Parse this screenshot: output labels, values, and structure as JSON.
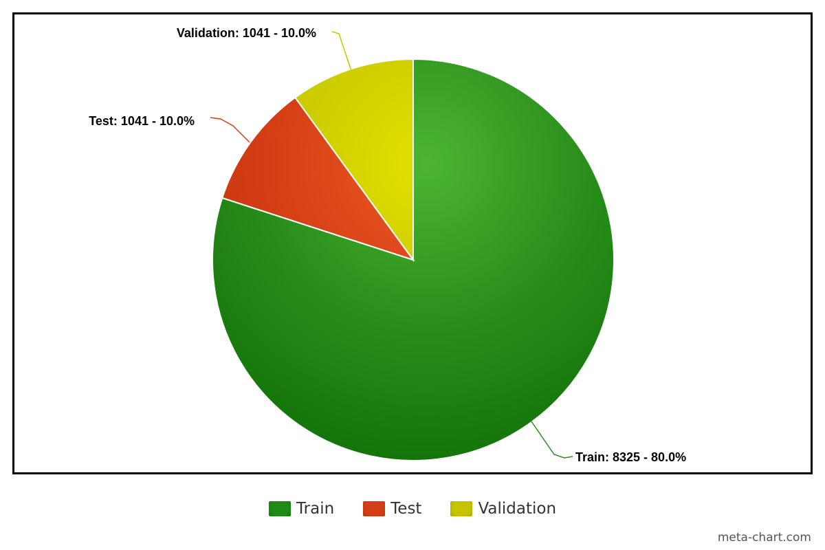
{
  "chart_data": {
    "type": "pie",
    "title": "",
    "start_angle_deg": 0,
    "direction": "clockwise",
    "slices": [
      {
        "name": "Train",
        "value": 8325,
        "percent": 80.0,
        "label": "Train: 8325 - 80.0%",
        "color": "#2a8f1c",
        "color_light": "#4db532",
        "color_dark": "#0b6a02"
      },
      {
        "name": "Test",
        "value": 1041,
        "percent": 10.0,
        "label": "Test: 1041 - 10.0%",
        "color": "#d43e14",
        "color_light": "#ec5a22",
        "color_dark": "#b52a0c"
      },
      {
        "name": "Validation",
        "value": 1041,
        "percent": 10.0,
        "label": "Validation: 1041 - 10.0%",
        "color": "#c8c800",
        "color_light": "#e2e000",
        "color_dark": "#b0b000"
      }
    ],
    "legend_position": "bottom-center"
  },
  "legend": {
    "items": [
      {
        "label": "Train",
        "color": "#1f8a14"
      },
      {
        "label": "Test",
        "color": "#d43e14"
      },
      {
        "label": "Validation",
        "color": "#c4c400"
      }
    ]
  },
  "credit": "meta-chart.com"
}
